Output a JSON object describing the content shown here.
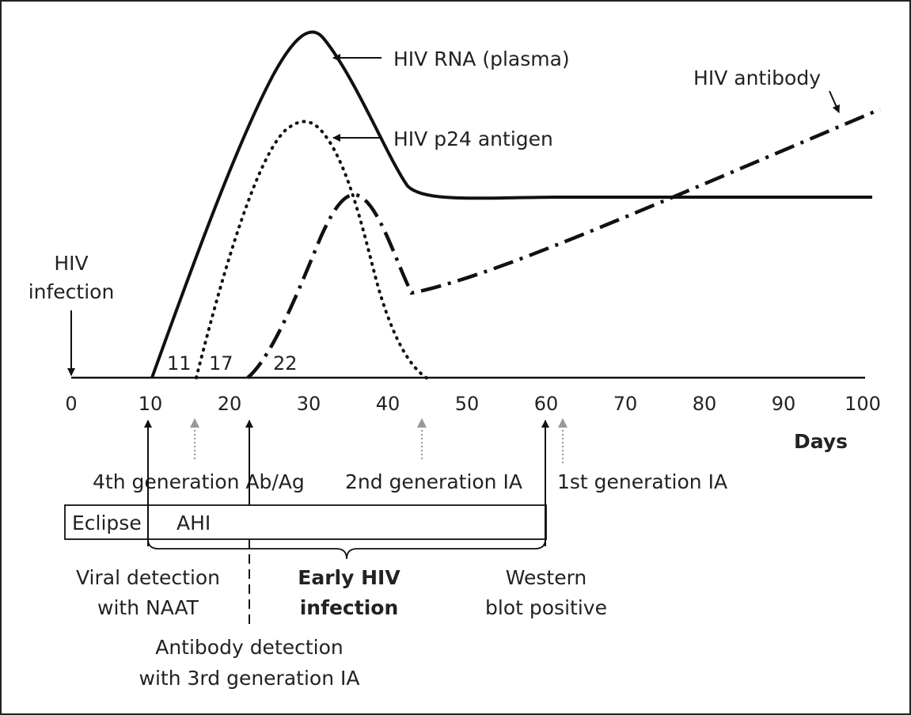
{
  "colors": {
    "ink": "#111111",
    "marker_gray": "#999999",
    "frame": "#222222"
  },
  "axis": {
    "ticks": [
      "0",
      "10",
      "20",
      "30",
      "40",
      "50",
      "60",
      "70",
      "80",
      "90",
      "100"
    ],
    "xlabel": "Days"
  },
  "curves": {
    "rna": "HIV RNA (plasma)",
    "p24": "HIV p24 antigen",
    "antibody": "HIV antibody"
  },
  "onset_days": {
    "rna": "11",
    "p24": "17",
    "antibody": "22"
  },
  "infection": {
    "line1": "HIV",
    "line2": "infection"
  },
  "tests": {
    "fourth_gen": "4th generation Ab/Ag",
    "second_gen": "2nd generation IA",
    "first_gen": "1st generation IA"
  },
  "phases": {
    "eclipse": "Eclipse",
    "ahi": "AHI"
  },
  "annotations": {
    "naat_line1": "Viral detection",
    "naat_line2": "with NAAT",
    "early_line1": "Early HIV",
    "early_line2": "infection",
    "western_line1": "Western",
    "western_line2": "blot positive",
    "antibody_line1": "Antibody detection",
    "antibody_line2": "with 3rd generation IA"
  }
}
